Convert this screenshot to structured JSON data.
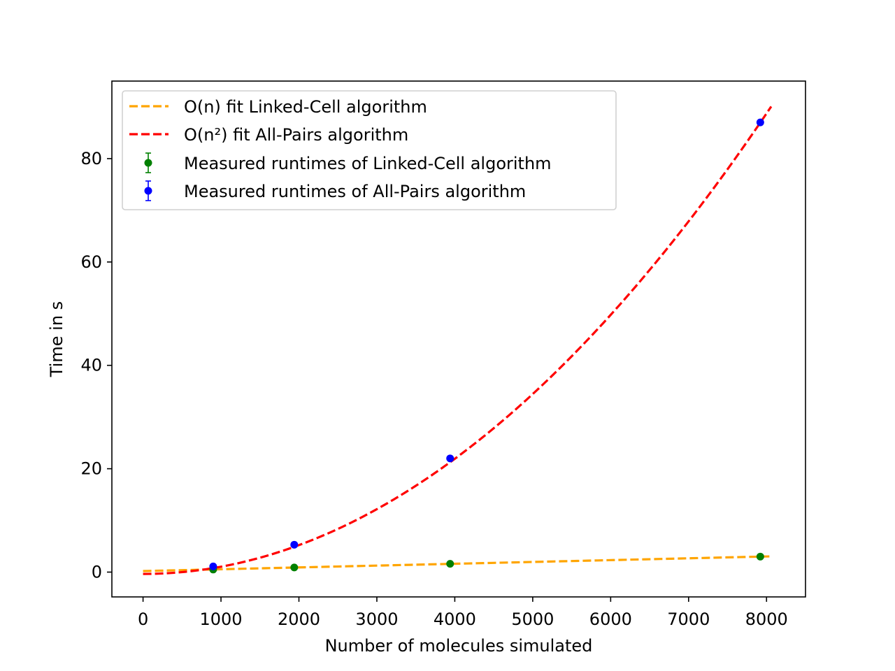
{
  "chart_data": {
    "type": "scatter",
    "title": "",
    "xlabel": "Number of molecules simulated",
    "ylabel": "Time in s",
    "xlim": [
      -400,
      8500
    ],
    "ylim": [
      -4.8,
      95
    ],
    "xticks": [
      0,
      1000,
      2000,
      3000,
      4000,
      5000,
      6000,
      7000,
      8000
    ],
    "yticks": [
      0,
      20,
      40,
      60,
      80
    ],
    "grid": false,
    "legend_position": "top-left",
    "series": [
      {
        "name": "O(n) fit Linked-Cell algorithm",
        "kind": "fit-line",
        "model": "linear",
        "x_range": [
          0,
          8050
        ],
        "coefficients": {
          "a": 0.000353,
          "b": 0.2
        },
        "color": "#FFA500",
        "line_style": "dashed"
      },
      {
        "name": "O(n²) fit All-Pairs algorithm",
        "kind": "fit-line",
        "model": "quadratic",
        "x_range": [
          0,
          8060
        ],
        "coefficients": {
          "a": 1.392e-06,
          "b": 0.0,
          "c": -0.35
        },
        "color": "#FF0000",
        "line_style": "dashed"
      },
      {
        "name": "Measured runtimes of Linked-Cell algorithm",
        "kind": "errorbar-points",
        "x": [
          900,
          1940,
          3940,
          7920
        ],
        "y": [
          0.5,
          0.9,
          1.6,
          3.0
        ],
        "yerr": [
          0.1,
          0.1,
          0.15,
          0.2
        ],
        "color": "#008000"
      },
      {
        "name": "Measured runtimes of All-Pairs algorithm",
        "kind": "errorbar-points",
        "x": [
          900,
          1940,
          3940,
          7920
        ],
        "y": [
          1.1,
          5.3,
          22.0,
          87.0
        ],
        "yerr": [
          0.2,
          0.3,
          0.4,
          0.5
        ],
        "color": "#0000FF"
      }
    ]
  }
}
